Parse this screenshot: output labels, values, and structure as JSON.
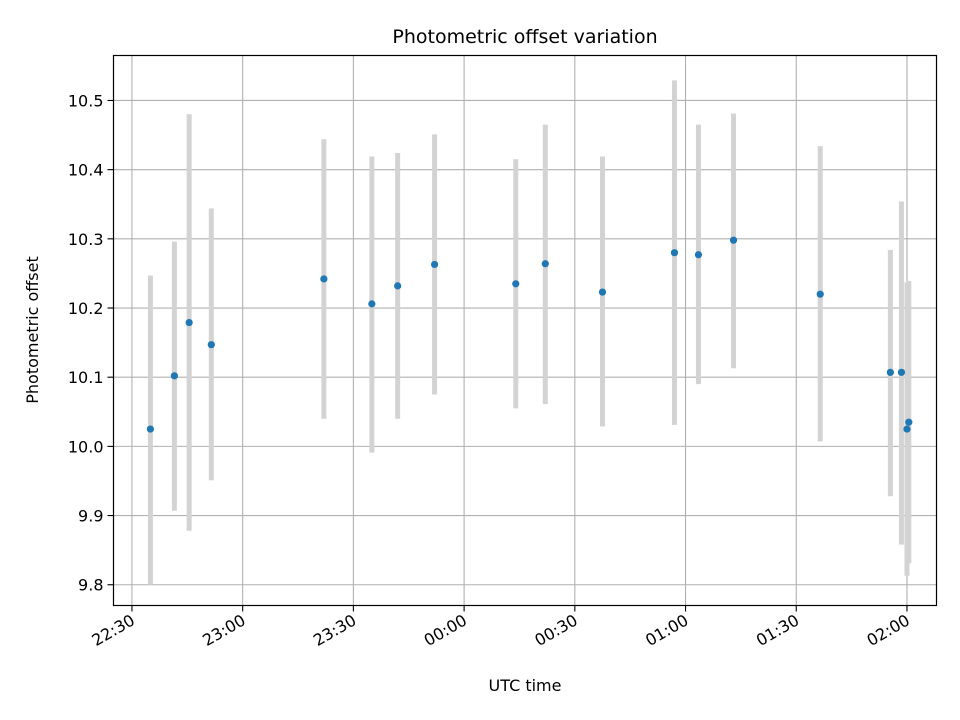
{
  "chart_data": {
    "type": "scatter",
    "title": "Photometric offset variation",
    "xlabel": "UTC time",
    "ylabel": "Photometric offset",
    "x_ticks": [
      "22:30",
      "23:00",
      "23:30",
      "00:00",
      "00:30",
      "01:00",
      "01:30",
      "02:00"
    ],
    "x_tick_minutes": [
      0,
      30,
      60,
      90,
      120,
      150,
      180,
      210
    ],
    "xlim_minutes": [
      -5,
      218
    ],
    "ylim": [
      9.77,
      10.565
    ],
    "y_ticks": [
      9.8,
      9.9,
      10.0,
      10.1,
      10.2,
      10.3,
      10.4,
      10.5
    ],
    "grid": true,
    "colors": {
      "points": "#1f77b4",
      "errorbars": "#d3d3d3",
      "grid": "#b0b0b0"
    },
    "series": [
      {
        "points": [
          {
            "time": "22:35",
            "y": 10.025,
            "ylow": 9.8,
            "yhigh": 10.247
          },
          {
            "time": "22:41.5",
            "y": 10.102,
            "ylow": 9.907,
            "yhigh": 10.296
          },
          {
            "time": "22:45.5",
            "y": 10.179,
            "ylow": 9.878,
            "yhigh": 10.48
          },
          {
            "time": "22:51.5",
            "y": 10.147,
            "ylow": 9.951,
            "yhigh": 10.344
          },
          {
            "time": "23:22",
            "y": 10.242,
            "ylow": 10.04,
            "yhigh": 10.444
          },
          {
            "time": "23:35",
            "y": 10.206,
            "ylow": 9.991,
            "yhigh": 10.419
          },
          {
            "time": "23:42",
            "y": 10.232,
            "ylow": 10.04,
            "yhigh": 10.424
          },
          {
            "time": "23:52",
            "y": 10.263,
            "ylow": 10.075,
            "yhigh": 10.451
          },
          {
            "time": "00:14",
            "y": 10.235,
            "ylow": 10.055,
            "yhigh": 10.415
          },
          {
            "time": "00:22",
            "y": 10.264,
            "ylow": 10.061,
            "yhigh": 10.465
          },
          {
            "time": "00:37.5",
            "y": 10.223,
            "ylow": 10.029,
            "yhigh": 10.419
          },
          {
            "time": "00:57",
            "y": 10.28,
            "ylow": 10.031,
            "yhigh": 10.529
          },
          {
            "time": "01:03.5",
            "y": 10.277,
            "ylow": 10.09,
            "yhigh": 10.465
          },
          {
            "time": "01:13",
            "y": 10.298,
            "ylow": 10.113,
            "yhigh": 10.481
          },
          {
            "time": "01:36.5",
            "y": 10.22,
            "ylow": 10.007,
            "yhigh": 10.434
          },
          {
            "time": "01:55.5",
            "y": 10.107,
            "ylow": 9.928,
            "yhigh": 10.284
          },
          {
            "time": "01:58.5",
            "y": 10.107,
            "ylow": 9.858,
            "yhigh": 10.354
          },
          {
            "time": "02:00",
            "y": 10.025,
            "ylow": 9.813,
            "yhigh": 10.237
          },
          {
            "time": "02:00.5",
            "y": 10.035,
            "ylow": 9.831,
            "yhigh": 10.239
          }
        ]
      }
    ]
  }
}
